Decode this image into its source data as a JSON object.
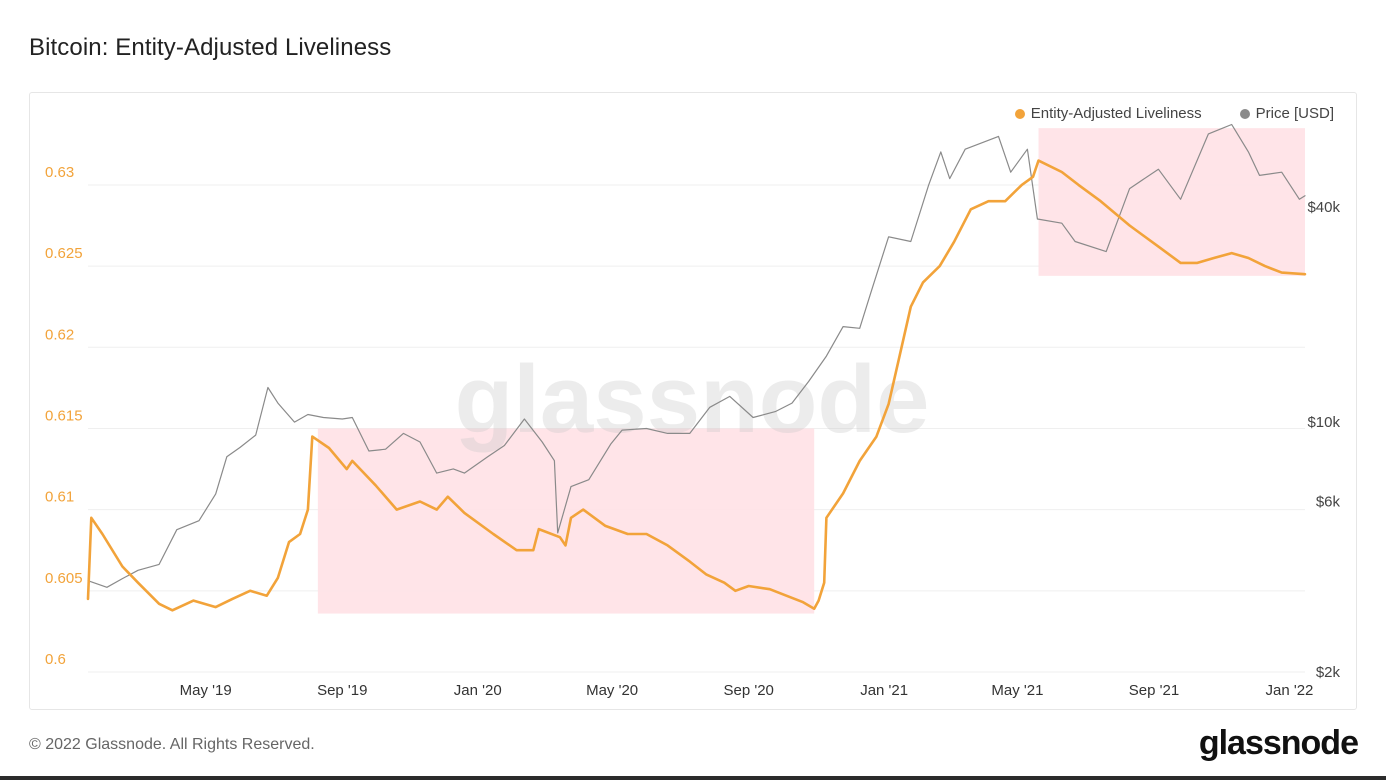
{
  "page": {
    "title": "Bitcoin: Entity-Adjusted Liveliness",
    "footer": "© 2022 Glassnode. All Rights Reserved.",
    "brand": "glassnode",
    "watermark": "glassnode"
  },
  "chart_data": {
    "type": "line",
    "title": "Bitcoin: Entity-Adjusted Liveliness",
    "legend_position": "top-right",
    "grid": true,
    "x_range": [
      "2019-01-15",
      "2022-01-15"
    ],
    "x_ticks": [
      {
        "label": "May '19",
        "date": "2019-05-01"
      },
      {
        "label": "Sep '19",
        "date": "2019-09-01"
      },
      {
        "label": "Jan '20",
        "date": "2020-01-01"
      },
      {
        "label": "May '20",
        "date": "2020-05-01"
      },
      {
        "label": "Sep '20",
        "date": "2020-09-01"
      },
      {
        "label": "Jan '21",
        "date": "2021-01-01"
      },
      {
        "label": "May '21",
        "date": "2021-05-01"
      },
      {
        "label": "Sep '21",
        "date": "2021-09-01"
      },
      {
        "label": "Jan '22",
        "date": "2022-01-01"
      }
    ],
    "y_left": {
      "range": [
        0.6,
        0.634
      ],
      "ticks": [
        "0.6",
        "0.605",
        "0.61",
        "0.615",
        "0.62",
        "0.625",
        "0.63"
      ],
      "tick_values": [
        0.6,
        0.605,
        0.61,
        0.615,
        0.62,
        0.625,
        0.63
      ],
      "color": "#f2a33a"
    },
    "y_right": {
      "scale": "log",
      "range": [
        2000,
        70000
      ],
      "ticks": [
        "$2k",
        "$6k",
        "$10k",
        "$40k"
      ],
      "tick_values": [
        2000,
        6000,
        10000,
        40000
      ]
    },
    "highlight_color": "#ffe1e5",
    "highlights": [
      {
        "x_start": "2019-08-10",
        "x_end": "2020-10-30",
        "y_start": 0.6036,
        "y_end": 0.615
      },
      {
        "x_start": "2021-05-20",
        "x_end": "2022-01-15",
        "y_start": 0.6244,
        "y_end": 0.6335
      }
    ],
    "series": [
      {
        "name": "Entity-Adjusted Liveliness",
        "color": "#f2a33a",
        "axis": "left",
        "points": [
          [
            "2019-01-15",
            0.6045
          ],
          [
            "2019-01-18",
            0.6095
          ],
          [
            "2019-01-28",
            0.6085
          ],
          [
            "2019-02-15",
            0.6065
          ],
          [
            "2019-03-01",
            0.6055
          ],
          [
            "2019-03-20",
            0.6042
          ],
          [
            "2019-04-01",
            0.6038
          ],
          [
            "2019-04-20",
            0.6044
          ],
          [
            "2019-05-10",
            0.604
          ],
          [
            "2019-05-25",
            0.6045
          ],
          [
            "2019-06-10",
            0.605
          ],
          [
            "2019-06-25",
            0.6047
          ],
          [
            "2019-07-05",
            0.6058
          ],
          [
            "2019-07-15",
            0.608
          ],
          [
            "2019-07-25",
            0.6085
          ],
          [
            "2019-08-01",
            0.61
          ],
          [
            "2019-08-05",
            0.6145
          ],
          [
            "2019-08-20",
            0.6138
          ],
          [
            "2019-09-05",
            0.6125
          ],
          [
            "2019-09-10",
            0.613
          ],
          [
            "2019-10-01",
            0.6115
          ],
          [
            "2019-10-20",
            0.61
          ],
          [
            "2019-11-10",
            0.6105
          ],
          [
            "2019-11-25",
            0.61
          ],
          [
            "2019-12-05",
            0.6108
          ],
          [
            "2019-12-20",
            0.6098
          ],
          [
            "2020-01-15",
            0.6085
          ],
          [
            "2020-02-05",
            0.6075
          ],
          [
            "2020-02-20",
            0.6075
          ],
          [
            "2020-02-25",
            0.6088
          ],
          [
            "2020-03-15",
            0.6083
          ],
          [
            "2020-03-20",
            0.6078
          ],
          [
            "2020-03-25",
            0.6095
          ],
          [
            "2020-04-05",
            0.61
          ],
          [
            "2020-04-25",
            0.609
          ],
          [
            "2020-05-15",
            0.6085
          ],
          [
            "2020-06-01",
            0.6085
          ],
          [
            "2020-06-20",
            0.6078
          ],
          [
            "2020-07-10",
            0.6068
          ],
          [
            "2020-07-25",
            0.606
          ],
          [
            "2020-08-10",
            0.6055
          ],
          [
            "2020-08-20",
            0.605
          ],
          [
            "2020-09-01",
            0.6053
          ],
          [
            "2020-09-20",
            0.6051
          ],
          [
            "2020-10-05",
            0.6047
          ],
          [
            "2020-10-20",
            0.6043
          ],
          [
            "2020-10-30",
            0.6039
          ],
          [
            "2020-11-03",
            0.6044
          ],
          [
            "2020-11-08",
            0.6055
          ],
          [
            "2020-11-10",
            0.6095
          ],
          [
            "2020-11-25",
            0.611
          ],
          [
            "2020-12-10",
            0.613
          ],
          [
            "2020-12-25",
            0.6145
          ],
          [
            "2021-01-05",
            0.6165
          ],
          [
            "2021-01-15",
            0.6195
          ],
          [
            "2021-01-25",
            0.6225
          ],
          [
            "2021-02-05",
            0.624
          ],
          [
            "2021-02-20",
            0.625
          ],
          [
            "2021-03-05",
            0.6265
          ],
          [
            "2021-03-20",
            0.6285
          ],
          [
            "2021-04-05",
            0.629
          ],
          [
            "2021-04-20",
            0.629
          ],
          [
            "2021-05-05",
            0.63
          ],
          [
            "2021-05-15",
            0.6305
          ],
          [
            "2021-05-20",
            0.6315
          ],
          [
            "2021-06-10",
            0.6308
          ],
          [
            "2021-06-25",
            0.63
          ],
          [
            "2021-07-15",
            0.629
          ],
          [
            "2021-08-10",
            0.6275
          ],
          [
            "2021-09-05",
            0.6262
          ],
          [
            "2021-09-25",
            0.6252
          ],
          [
            "2021-10-10",
            0.6252
          ],
          [
            "2021-10-25",
            0.6255
          ],
          [
            "2021-11-10",
            0.6258
          ],
          [
            "2021-11-25",
            0.6255
          ],
          [
            "2021-12-10",
            0.625
          ],
          [
            "2021-12-25",
            0.6246
          ],
          [
            "2022-01-15",
            0.6245
          ]
        ]
      },
      {
        "name": "Price [USD]",
        "color": "#8a8a8a",
        "axis": "right",
        "points": [
          [
            "2019-01-15",
            3600
          ],
          [
            "2019-02-01",
            3450
          ],
          [
            "2019-02-15",
            3650
          ],
          [
            "2019-03-01",
            3850
          ],
          [
            "2019-03-20",
            4000
          ],
          [
            "2019-04-05",
            5000
          ],
          [
            "2019-04-25",
            5300
          ],
          [
            "2019-05-10",
            6300
          ],
          [
            "2019-05-20",
            8000
          ],
          [
            "2019-06-01",
            8500
          ],
          [
            "2019-06-15",
            9200
          ],
          [
            "2019-06-26",
            12500
          ],
          [
            "2019-07-05",
            11300
          ],
          [
            "2019-07-20",
            10000
          ],
          [
            "2019-08-01",
            10500
          ],
          [
            "2019-08-15",
            10300
          ],
          [
            "2019-09-01",
            10200
          ],
          [
            "2019-09-10",
            10300
          ],
          [
            "2019-09-25",
            8300
          ],
          [
            "2019-10-10",
            8400
          ],
          [
            "2019-10-26",
            9300
          ],
          [
            "2019-11-10",
            8800
          ],
          [
            "2019-11-25",
            7200
          ],
          [
            "2019-12-10",
            7400
          ],
          [
            "2019-12-20",
            7200
          ],
          [
            "2020-01-10",
            8000
          ],
          [
            "2020-01-25",
            8600
          ],
          [
            "2020-02-12",
            10200
          ],
          [
            "2020-02-28",
            8800
          ],
          [
            "2020-03-10",
            7800
          ],
          [
            "2020-03-13",
            4900
          ],
          [
            "2020-03-25",
            6600
          ],
          [
            "2020-04-10",
            6900
          ],
          [
            "2020-04-30",
            8700
          ],
          [
            "2020-05-10",
            9500
          ],
          [
            "2020-06-01",
            9600
          ],
          [
            "2020-06-20",
            9300
          ],
          [
            "2020-07-10",
            9300
          ],
          [
            "2020-07-28",
            11000
          ],
          [
            "2020-08-15",
            11800
          ],
          [
            "2020-09-05",
            10300
          ],
          [
            "2020-09-25",
            10700
          ],
          [
            "2020-10-10",
            11300
          ],
          [
            "2020-10-25",
            13000
          ],
          [
            "2020-11-10",
            15300
          ],
          [
            "2020-11-25",
            18500
          ],
          [
            "2020-12-10",
            18300
          ],
          [
            "2020-12-20",
            23000
          ],
          [
            "2021-01-05",
            33000
          ],
          [
            "2021-01-25",
            32000
          ],
          [
            "2021-02-10",
            46000
          ],
          [
            "2021-02-21",
            57000
          ],
          [
            "2021-03-01",
            48000
          ],
          [
            "2021-03-15",
            58000
          ],
          [
            "2021-04-14",
            63000
          ],
          [
            "2021-04-25",
            50000
          ],
          [
            "2021-05-10",
            58000
          ],
          [
            "2021-05-19",
            37000
          ],
          [
            "2021-06-10",
            36000
          ],
          [
            "2021-06-22",
            32000
          ],
          [
            "2021-07-20",
            30000
          ],
          [
            "2021-08-10",
            45000
          ],
          [
            "2021-09-05",
            51000
          ],
          [
            "2021-09-25",
            42000
          ],
          [
            "2021-10-20",
            64000
          ],
          [
            "2021-11-10",
            68000
          ],
          [
            "2021-11-25",
            57000
          ],
          [
            "2021-12-05",
            49000
          ],
          [
            "2021-12-25",
            50000
          ],
          [
            "2022-01-10",
            42000
          ],
          [
            "2022-01-15",
            43000
          ]
        ]
      }
    ]
  }
}
